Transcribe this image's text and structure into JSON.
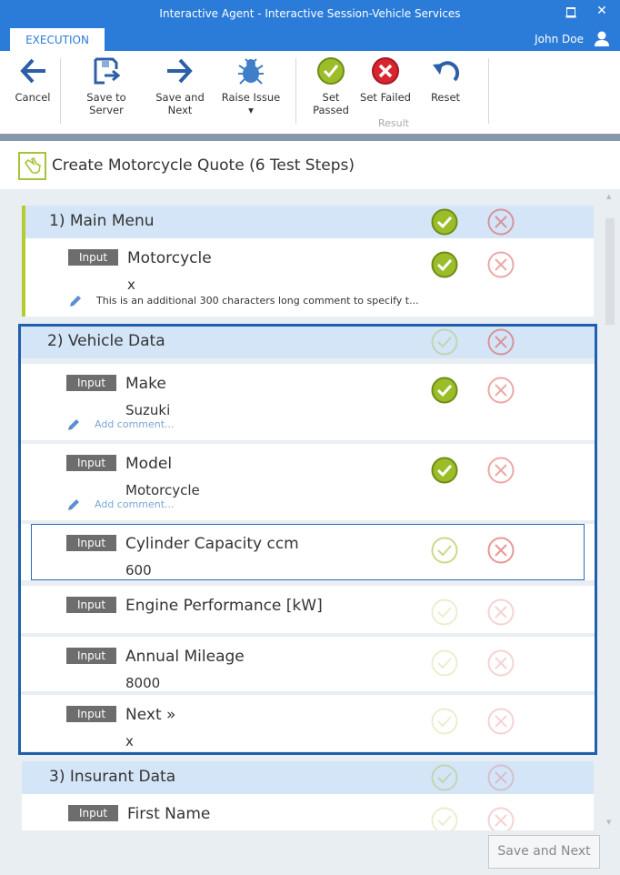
{
  "window": {
    "title": "Interactive Agent - Interactive Session-Vehicle Services",
    "tab": "EXECUTION",
    "user": "John Doe",
    "accent": "#2b7cd8"
  },
  "ribbon": {
    "buttons": [
      {
        "id": "cancel",
        "label": "Cancel",
        "icon": "arrow-left-icon"
      },
      {
        "id": "save-to-server",
        "label": "Save to Server",
        "icon": "save-icon"
      },
      {
        "id": "save-and-next",
        "label": "Save and Next",
        "icon": "arrow-right-icon"
      },
      {
        "id": "raise-issue",
        "label": "Raise Issue ▾",
        "icon": "bug-icon"
      },
      {
        "id": "set-passed",
        "label": "Set Passed",
        "icon": "check-circle-icon"
      },
      {
        "id": "set-failed",
        "label": "Set Failed",
        "icon": "x-circle-icon"
      },
      {
        "id": "reset",
        "label": "Reset",
        "icon": "undo-icon"
      }
    ],
    "group_label": "Result"
  },
  "test": {
    "title": "Create Motorcycle Quote (6 Test Steps)"
  },
  "steps": [
    {
      "title": "1)  Main Menu",
      "pass": "passed",
      "rows": [
        {
          "badge": "Input",
          "label": "Motorcycle",
          "value": "x",
          "comment": "This is an additional 300 characters long comment to specify t...",
          "pass": "passed",
          "state": "normal"
        }
      ]
    },
    {
      "title": "2)  Vehicle Data",
      "pass": "pending",
      "rows": [
        {
          "badge": "Input",
          "label": "Make",
          "value": "Suzuki",
          "comment": "Add comment...",
          "pass": "passed",
          "state": "normal"
        },
        {
          "badge": "Input",
          "label": "Model",
          "value": "Motorcycle",
          "comment": "Add comment...",
          "pass": "passed",
          "state": "normal"
        },
        {
          "badge": "Input",
          "label": "Cylinder Capacity ccm",
          "value": "600",
          "pass": "pending",
          "state": "current"
        },
        {
          "badge": "Input",
          "label": "Engine Performance [kW]",
          "value": "",
          "pass": "pending",
          "state": "dim"
        },
        {
          "badge": "Input",
          "label": "Annual Mileage",
          "value": "8000",
          "pass": "pending",
          "state": "dim"
        },
        {
          "badge": "Input",
          "label": "Next »",
          "value": "x",
          "pass": "pending",
          "state": "dim"
        }
      ]
    },
    {
      "title": "3)  Insurant Data",
      "pass": "pending",
      "rows": [
        {
          "badge": "Input",
          "label": "First Name",
          "value": "",
          "pass": "pending",
          "state": "dim"
        }
      ]
    }
  ],
  "footer": {
    "save_next": "Save and Next"
  }
}
